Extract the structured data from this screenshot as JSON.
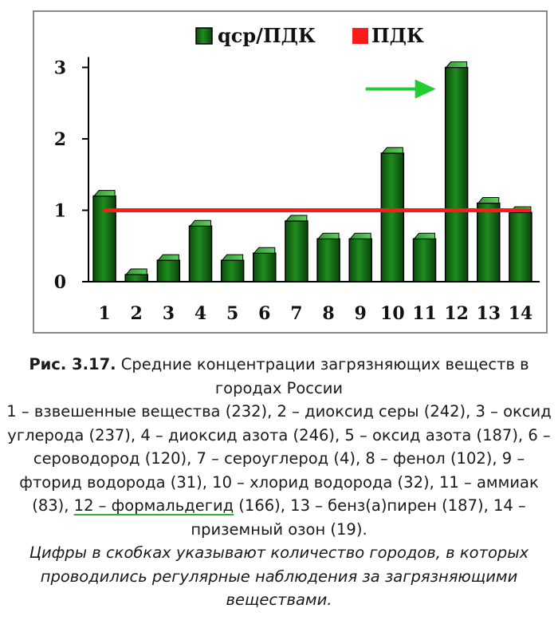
{
  "chart_data": {
    "type": "bar",
    "title": "",
    "xlabel": "",
    "ylabel": "",
    "categories": [
      "1",
      "2",
      "3",
      "4",
      "5",
      "6",
      "7",
      "8",
      "9",
      "10",
      "11",
      "12",
      "13",
      "14"
    ],
    "series": [
      {
        "name": "qср/ПДК",
        "values": [
          1.2,
          0.1,
          0.3,
          0.78,
          0.3,
          0.4,
          0.85,
          0.6,
          0.6,
          1.8,
          0.6,
          3.0,
          1.1,
          0.97
        ],
        "color": "#1a7a1a"
      }
    ],
    "reference_line": {
      "name": "ПДК",
      "value": 1.0,
      "color": "#ff1a1a"
    },
    "y_ticks": [
      "0",
      "1",
      "2",
      "3"
    ],
    "ylim": [
      0,
      3.1
    ],
    "grid": false,
    "legend": {
      "position": "top-center"
    },
    "annotation": {
      "type": "arrow",
      "target_category": "12",
      "color": "#22cc33"
    }
  },
  "caption": {
    "figure_label": "Рис. 3.17.",
    "figure_title": " Средние концентрации загрязняющих веществ в городах России",
    "items_part1": "1 – взвешенные вещества (232), 2 – диоксид серы (242), 3 – оксид углерода (237), 4 – диоксид азота (246), 5 – оксид азота (187), 6 – сероводород (120),",
    "items_part2": "7 – сероуглерод (4), 8 – фенол (102), 9 – фторид водорода (31), 10 – хлорид водорода (32),",
    "items_part3a": "11 – аммиак (83), ",
    "items_highlight": "12 – формальдегид",
    "items_part3b": " (166),",
    "items_part4": "13 – бенз(а)пирен (187), 14 – приземный озон (19).",
    "note": "Цифры в скобках указывают количество городов, в которых проводились регулярные наблюдения за загрязняющими веществами."
  }
}
